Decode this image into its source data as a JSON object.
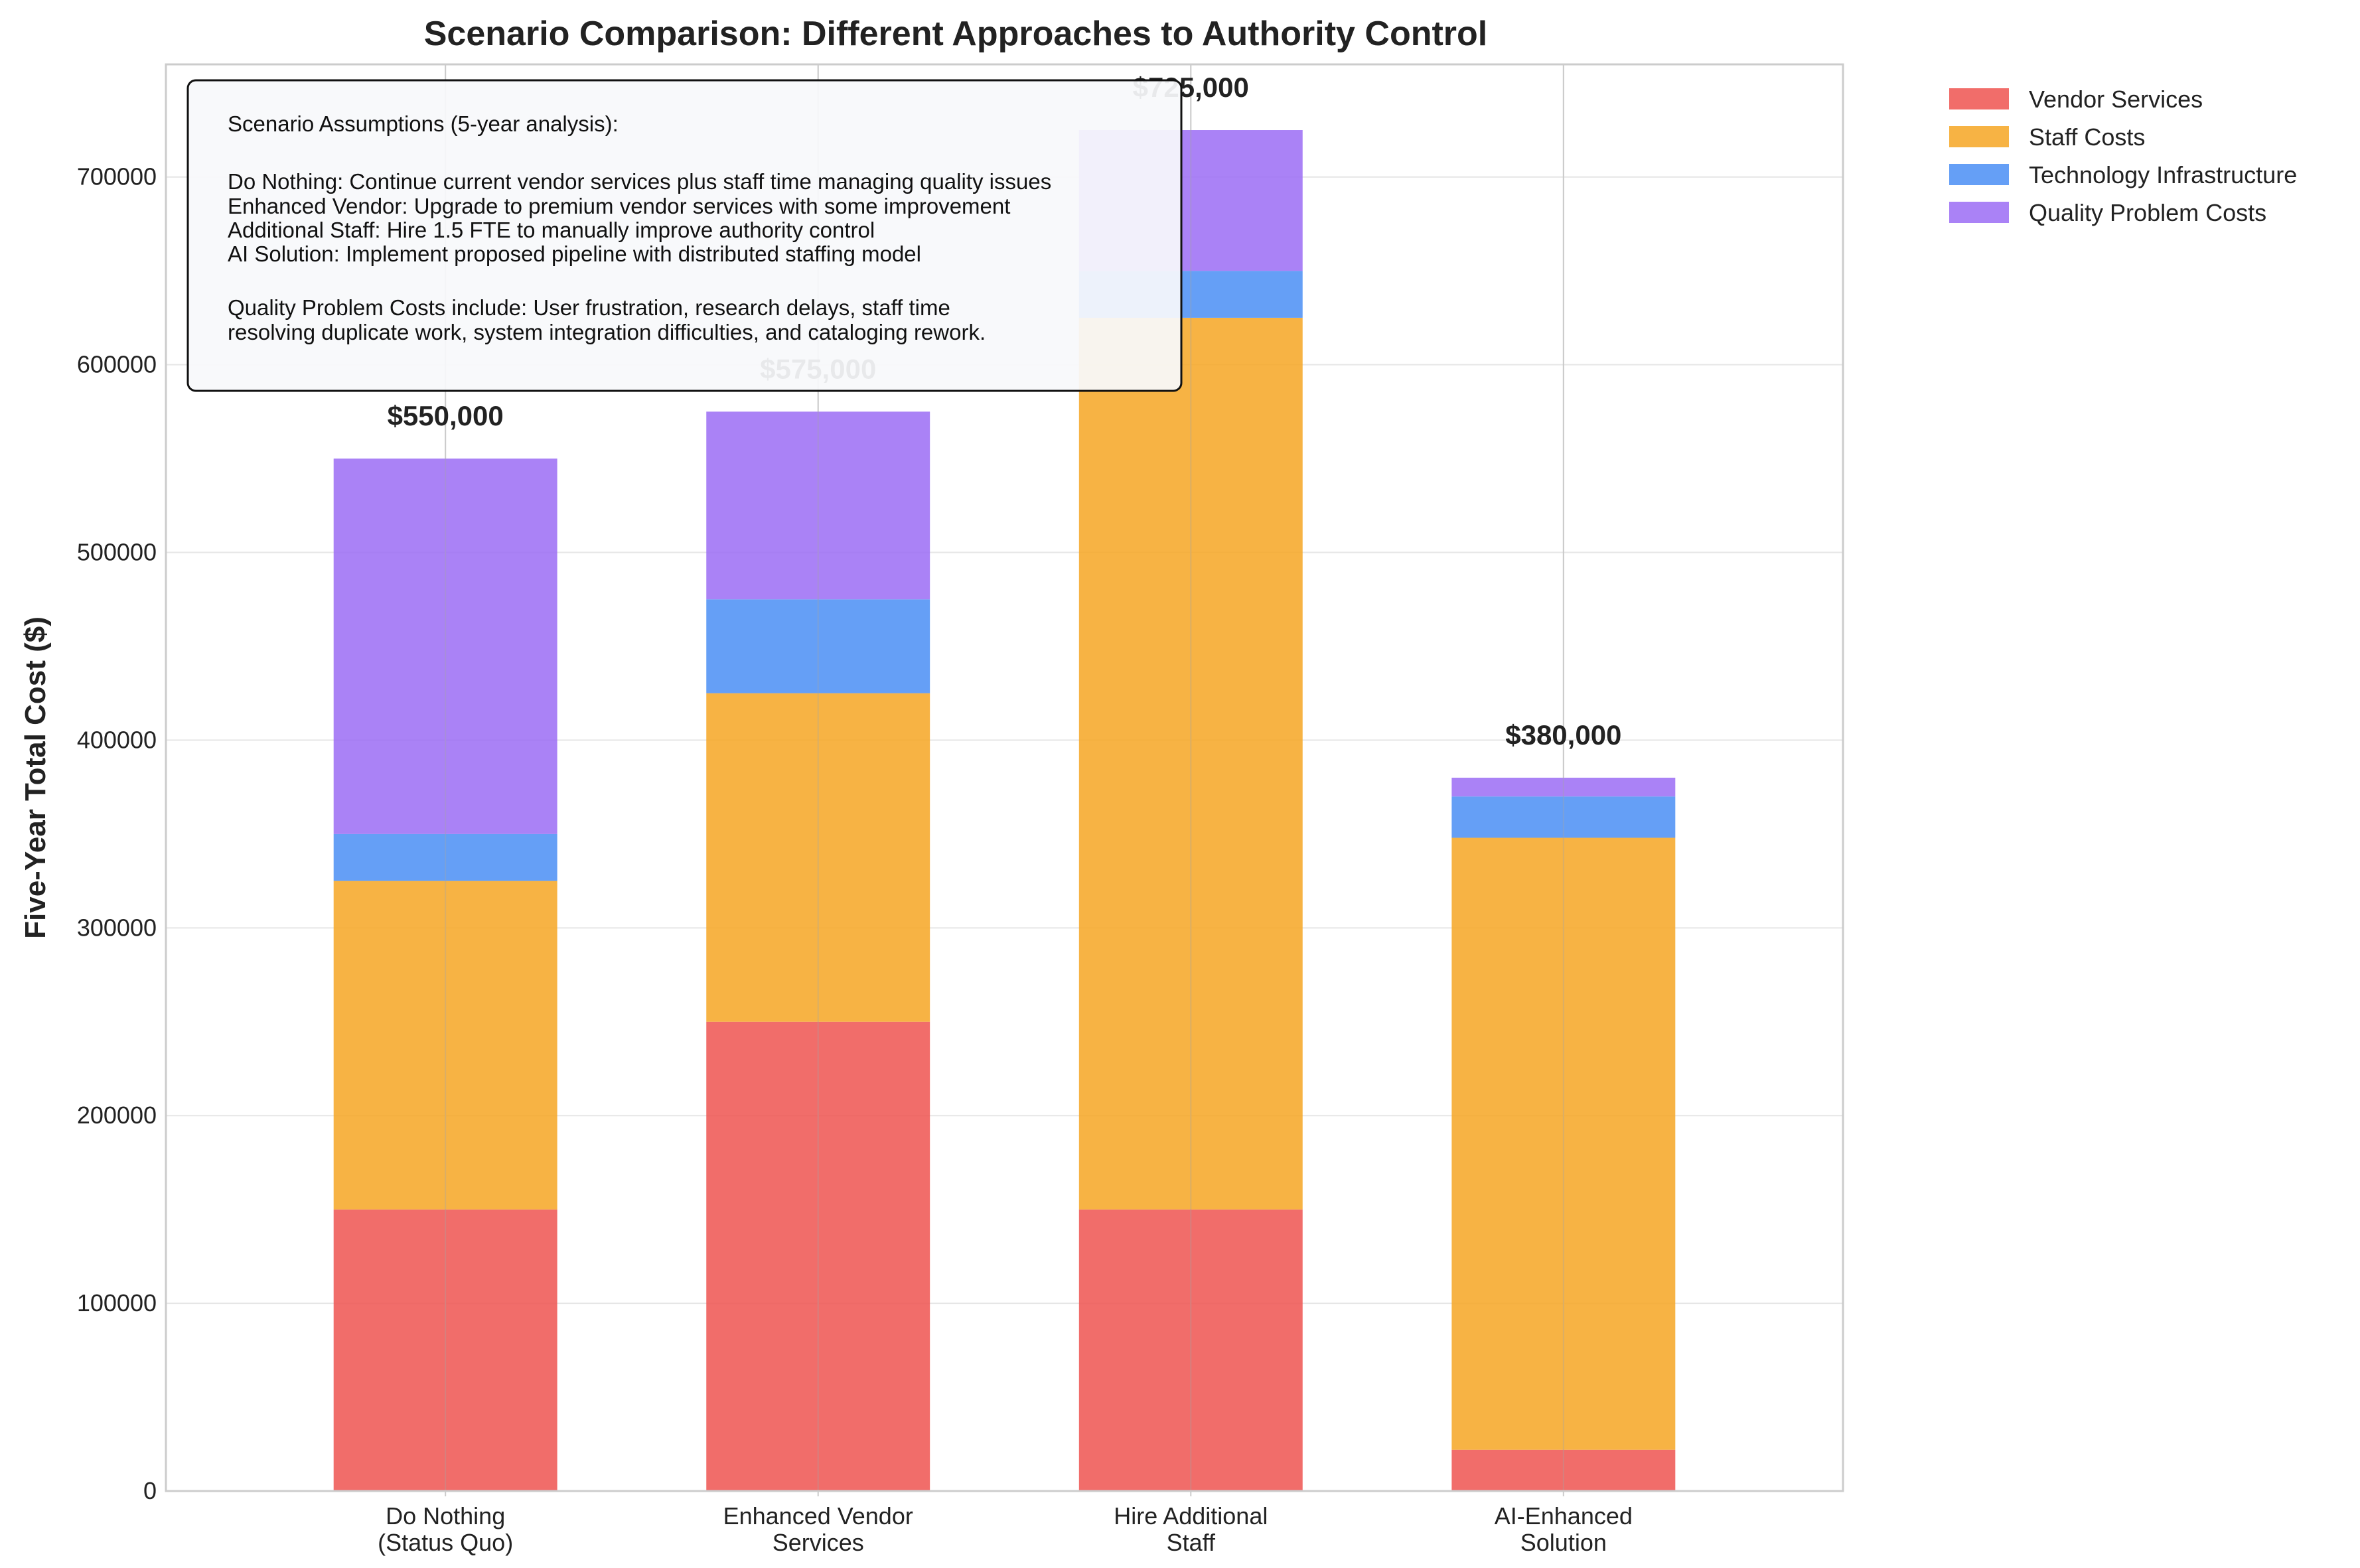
{
  "chart_data": {
    "type": "bar",
    "stacked": true,
    "title": "Scenario Comparison: Different Approaches to Authority Control",
    "xlabel": "",
    "ylabel": "Five-Year Total Cost ($)",
    "ylim": [
      0,
      760000
    ],
    "yticks": [
      0,
      100000,
      200000,
      300000,
      400000,
      500000,
      600000,
      700000
    ],
    "grid": true,
    "legend_position": "outside-top-right",
    "categories": [
      [
        "Do Nothing",
        "(Status Quo)"
      ],
      [
        "Enhanced Vendor",
        "Services"
      ],
      [
        "Hire Additional",
        "Staff"
      ],
      [
        "AI-Enhanced",
        "Solution"
      ]
    ],
    "series": [
      {
        "name": "Vendor Services",
        "color": "#ef5350",
        "values": [
          150000,
          250000,
          150000,
          22000
        ]
      },
      {
        "name": "Staff Costs",
        "color": "#f6a623",
        "values": [
          175000,
          175000,
          475000,
          326000
        ]
      },
      {
        "name": "Technology Infrastructure",
        "color": "#4a8ef5",
        "values": [
          25000,
          50000,
          25000,
          22000
        ]
      },
      {
        "name": "Quality Problem Costs",
        "color": "#9b6cf5",
        "values": [
          200000,
          100000,
          75000,
          10000
        ]
      }
    ],
    "totals": [
      "$550,000",
      "$575,000",
      "$725,000",
      "$380,000"
    ],
    "annotation": {
      "lines": [
        "Scenario Assumptions (5-year analysis):",
        "",
        "Do Nothing: Continue current vendor services plus staff time managing quality issues",
        "Enhanced Vendor: Upgrade to premium vendor services with some improvement",
        "Additional Staff: Hire 1.5 FTE to manually improve authority control",
        "AI Solution: Implement proposed pipeline with distributed staffing model",
        "",
        "Quality Problem Costs include: User frustration, research delays, staff time",
        "resolving duplicate work, system integration difficulties, and cataloging rework."
      ]
    }
  }
}
